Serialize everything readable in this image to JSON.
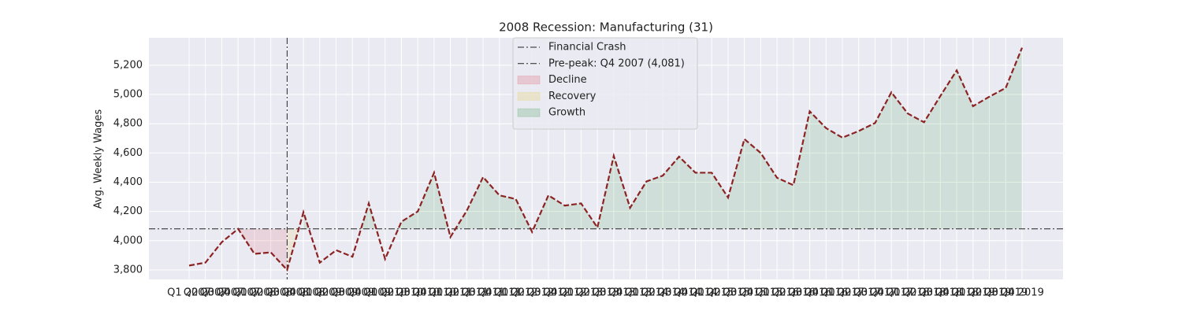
{
  "chart_data": {
    "type": "line",
    "title": "2008 Recession: Manufacturing (31)",
    "y_label": "Avg. Weekly Wages",
    "categories": [
      "Q1 2007",
      "Q2 2007",
      "Q3 2007",
      "Q4 2007",
      "Q1 2008",
      "Q2 2008",
      "Q3 2008",
      "Q4 2008",
      "Q1 2009",
      "Q2 2009",
      "Q3 2009",
      "Q4 2009",
      "Q1 2010",
      "Q2 2010",
      "Q3 2010",
      "Q4 2010",
      "Q1 2011",
      "Q2 2011",
      "Q3 2011",
      "Q4 2011",
      "Q1 2012",
      "Q2 2012",
      "Q3 2012",
      "Q4 2012",
      "Q1 2013",
      "Q2 2013",
      "Q3 2013",
      "Q4 2013",
      "Q1 2014",
      "Q2 2014",
      "Q3 2014",
      "Q4 2014",
      "Q1 2015",
      "Q2 2015",
      "Q3 2015",
      "Q4 2015",
      "Q1 2016",
      "Q2 2016",
      "Q3 2016",
      "Q4 2016",
      "Q1 2017",
      "Q2 2017",
      "Q3 2017",
      "Q4 2017",
      "Q1 2018",
      "Q2 2018",
      "Q3 2018",
      "Q4 2018",
      "Q1 2019",
      "Q2 2019",
      "Q3 2019",
      "Q4 2019"
    ],
    "series": [
      {
        "color": "#8b2323",
        "dashed": true,
        "values": [
          3830,
          3850,
          3990,
          4081,
          3910,
          3920,
          3800,
          4195,
          3850,
          3935,
          3890,
          4255,
          3875,
          4130,
          4200,
          4465,
          4025,
          4205,
          4435,
          4310,
          4285,
          4060,
          4310,
          4240,
          4255,
          4090,
          4580,
          4225,
          4405,
          4445,
          4575,
          4465,
          4465,
          4295,
          4695,
          4600,
          4430,
          4380,
          4885,
          4770,
          4705,
          4750,
          4805,
          5015,
          4870,
          4810,
          4990,
          5165,
          4920,
          4985,
          5045,
          5320
        ]
      }
    ],
    "ylim": [
      3735,
      5388
    ],
    "yticks": [
      {
        "value": 3800,
        "label": "3,800"
      },
      {
        "value": 4000,
        "label": "4,000"
      },
      {
        "value": 4200,
        "label": "4,200"
      },
      {
        "value": 4400,
        "label": "4,400"
      },
      {
        "value": 4600,
        "label": "4,600"
      },
      {
        "value": 4800,
        "label": "4,800"
      },
      {
        "value": 5000,
        "label": "5,000"
      },
      {
        "value": 5200,
        "label": "5,200"
      }
    ],
    "grid": true,
    "reference_lines": [
      {
        "name": "Financial Crash",
        "orientation": "vertical",
        "category": "Q3 2008",
        "color": "#222222"
      },
      {
        "name": "Pre-peak: Q4 2007 (4,081)",
        "orientation": "horizontal",
        "value": 4081,
        "color": "#222222"
      }
    ],
    "shading": [
      {
        "name": "Decline",
        "start": "Q4 2007",
        "end": "Q3 2008",
        "color": "#e05060",
        "where": "below"
      },
      {
        "name": "Recovery",
        "start": "Q3 2008",
        "end": "Q4 2008",
        "color": "#e8c840",
        "where": "below"
      },
      {
        "name": "Growth",
        "start": "Q4 2008",
        "end": "Q4 2019",
        "color": "#3a9a4a",
        "where": "above"
      }
    ],
    "fill_alpha": 0.15,
    "legend": "upper center"
  }
}
